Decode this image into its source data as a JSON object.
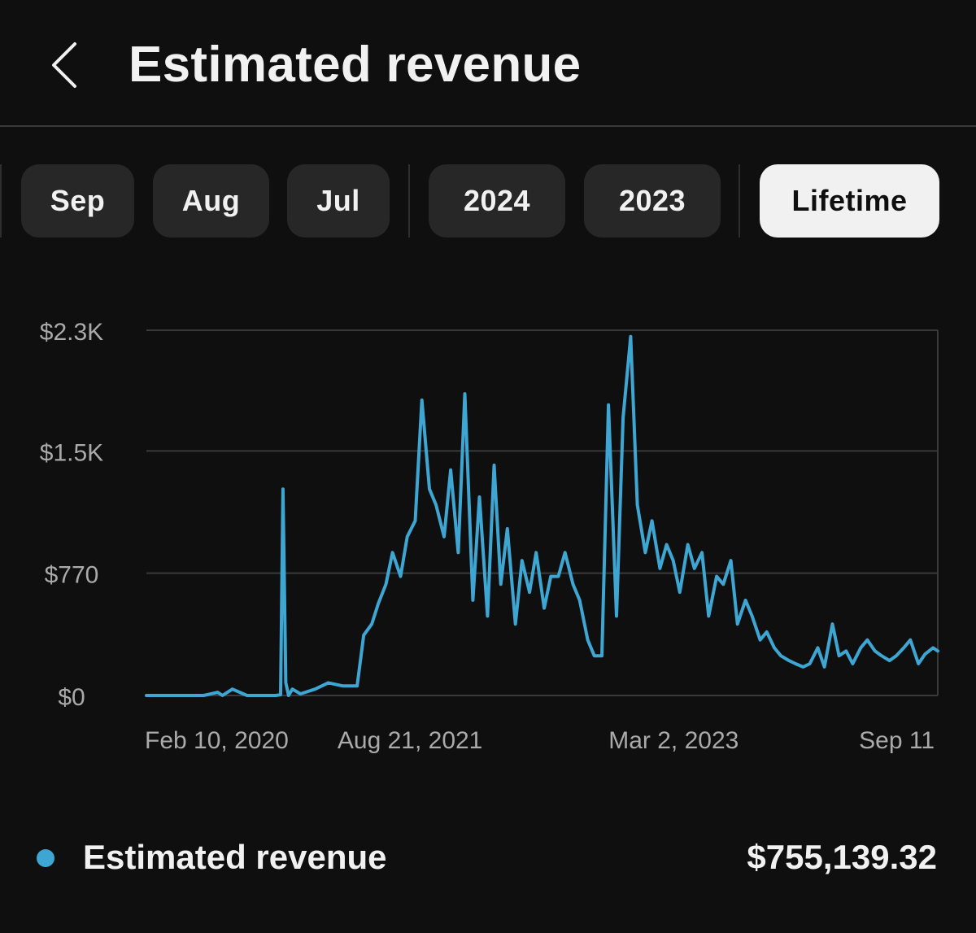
{
  "header": {
    "title": "Estimated revenue",
    "back_icon": "chevron-left-icon"
  },
  "chips": [
    {
      "label": "Sep",
      "selected": false
    },
    {
      "label": "Aug",
      "selected": false
    },
    {
      "label": "Jul",
      "selected": false
    },
    {
      "label": "2024",
      "selected": false
    },
    {
      "label": "2023",
      "selected": false
    },
    {
      "label": "Lifetime",
      "selected": true
    }
  ],
  "colors": {
    "background": "#0f0f0f",
    "line": "#3ea6d3",
    "chip": "#272727",
    "chip_selected": "#f1f1f1",
    "grid": "#3a3a3a",
    "axis_text": "#aaaaaa"
  },
  "chart_data": {
    "type": "line",
    "ylabel": "",
    "xlabel": "",
    "ylim": [
      0,
      2300
    ],
    "y_ticks": [
      {
        "value": 0,
        "label": "$0"
      },
      {
        "value": 770,
        "label": "$770"
      },
      {
        "value": 1540,
        "label": "$1.5K"
      },
      {
        "value": 2300,
        "label": "$2.3K"
      }
    ],
    "x_ticks": [
      {
        "date": "2020-02-10",
        "label": "Feb 10, 2020"
      },
      {
        "date": "2021-08-21",
        "label": "Aug 21, 2021"
      },
      {
        "date": "2023-03-02",
        "label": "Mar 2, 2023"
      },
      {
        "date": "2024-09-11",
        "label": "Sep 11"
      }
    ],
    "grid": true,
    "series": [
      {
        "name": "Estimated revenue",
        "x": [
          "2020-02-10",
          "2020-04-10",
          "2020-06-10",
          "2020-07-10",
          "2020-07-20",
          "2020-08-10",
          "2020-09-10",
          "2020-10-10",
          "2020-11-10",
          "2020-11-20",
          "2020-11-25",
          "2020-12-01",
          "2020-12-07",
          "2020-12-15",
          "2021-01-01",
          "2021-02-01",
          "2021-03-01",
          "2021-04-01",
          "2021-05-01",
          "2021-05-15",
          "2021-06-01",
          "2021-06-15",
          "2021-07-01",
          "2021-07-15",
          "2021-08-01",
          "2021-08-15",
          "2021-09-01",
          "2021-09-15",
          "2021-10-01",
          "2021-10-15",
          "2021-11-01",
          "2021-11-15",
          "2021-12-01",
          "2021-12-15",
          "2022-01-01",
          "2022-01-15",
          "2022-02-01",
          "2022-02-15",
          "2022-03-01",
          "2022-03-15",
          "2022-04-01",
          "2022-04-15",
          "2022-05-01",
          "2022-05-15",
          "2022-06-01",
          "2022-06-15",
          "2022-07-01",
          "2022-07-15",
          "2022-08-01",
          "2022-08-15",
          "2022-09-01",
          "2022-09-15",
          "2022-10-01",
          "2022-10-15",
          "2022-11-01",
          "2022-11-15",
          "2022-12-01",
          "2022-12-15",
          "2023-01-01",
          "2023-01-15",
          "2023-02-01",
          "2023-02-15",
          "2023-03-01",
          "2023-03-15",
          "2023-04-01",
          "2023-04-15",
          "2023-05-01",
          "2023-05-15",
          "2023-06-01",
          "2023-06-15",
          "2023-07-01",
          "2023-07-15",
          "2023-08-01",
          "2023-08-15",
          "2023-09-01",
          "2023-09-15",
          "2023-10-01",
          "2023-10-15",
          "2023-11-01",
          "2023-11-15",
          "2023-12-01",
          "2023-12-15",
          "2024-01-01",
          "2024-01-15",
          "2024-02-01",
          "2024-02-15",
          "2024-03-01",
          "2024-03-15",
          "2024-04-01",
          "2024-04-15",
          "2024-05-01",
          "2024-05-15",
          "2024-06-01",
          "2024-06-15",
          "2024-07-01",
          "2024-07-15",
          "2024-08-01",
          "2024-08-15",
          "2024-09-01",
          "2024-09-11"
        ],
        "y": [
          0,
          0,
          0,
          20,
          0,
          40,
          0,
          0,
          0,
          5,
          1300,
          80,
          0,
          40,
          10,
          40,
          80,
          60,
          60,
          380,
          450,
          580,
          700,
          900,
          750,
          1000,
          1100,
          1860,
          1300,
          1200,
          1000,
          1420,
          900,
          1900,
          600,
          1250,
          500,
          1450,
          700,
          1050,
          450,
          850,
          650,
          900,
          550,
          750,
          750,
          900,
          700,
          600,
          350,
          250,
          250,
          1830,
          500,
          1750,
          2260,
          1200,
          900,
          1100,
          800,
          950,
          850,
          650,
          950,
          800,
          900,
          500,
          750,
          700,
          850,
          450,
          600,
          500,
          350,
          400,
          300,
          250,
          220,
          200,
          180,
          200,
          300,
          180,
          450,
          250,
          280,
          200,
          300,
          350,
          280,
          250,
          220,
          250,
          300,
          350,
          200,
          260,
          300,
          280
        ]
      }
    ]
  },
  "legend": {
    "label": "Estimated revenue",
    "value": "$755,139.32"
  }
}
